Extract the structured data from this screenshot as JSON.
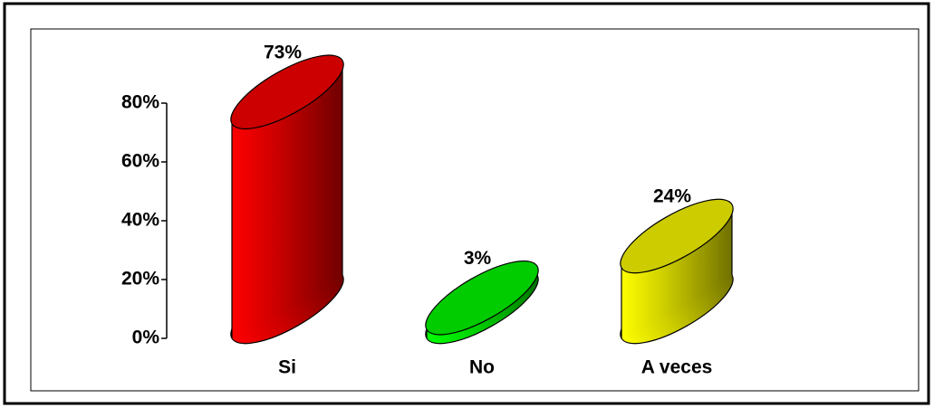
{
  "chart_data": {
    "type": "bar",
    "categories": [
      "Si",
      "No",
      "A veces"
    ],
    "values": [
      73,
      3,
      24
    ],
    "value_labels": [
      "73%",
      "3%",
      "24%"
    ],
    "colors": [
      "#cc0000",
      "#00cc00",
      "#cccc00"
    ],
    "ylim": [
      0,
      80
    ],
    "yticks": [
      {
        "value": 0,
        "label": "0%"
      },
      {
        "value": 20,
        "label": "20%"
      },
      {
        "value": 40,
        "label": "40%"
      },
      {
        "value": 60,
        "label": "60%"
      },
      {
        "value": 80,
        "label": "80%"
      }
    ]
  }
}
